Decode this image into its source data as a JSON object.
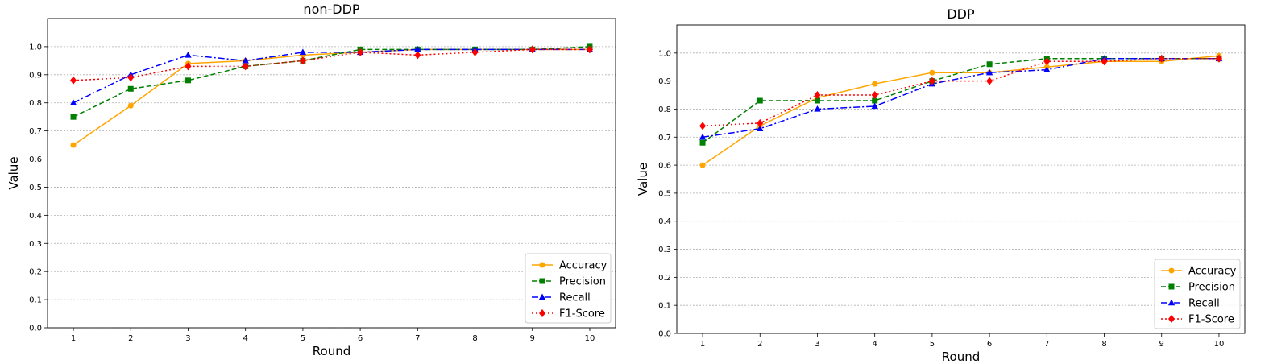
{
  "chart_data": [
    {
      "type": "line",
      "title": "non-DDP",
      "xlabel": "Round",
      "ylabel": "Value",
      "x": [
        1,
        2,
        3,
        4,
        5,
        6,
        7,
        8,
        9,
        10
      ],
      "xticks": [
        "1",
        "2",
        "3",
        "4",
        "5",
        "6",
        "7",
        "8",
        "9",
        "10"
      ],
      "yticks": [
        "0.0",
        "0.1",
        "0.2",
        "0.3",
        "0.4",
        "0.5",
        "0.6",
        "0.7",
        "0.8",
        "0.9",
        "1.0"
      ],
      "ylim": [
        0,
        1.1
      ],
      "grid": "y",
      "legend": "lower-right",
      "series": [
        {
          "name": "Accuracy",
          "color": "#ffa500",
          "linestyle": "solid",
          "marker": "circle",
          "values": [
            0.65,
            0.79,
            0.94,
            0.95,
            0.97,
            0.98,
            0.99,
            0.99,
            0.99,
            0.99
          ]
        },
        {
          "name": "Precision",
          "color": "#008000",
          "linestyle": "dashed",
          "marker": "square",
          "values": [
            0.75,
            0.85,
            0.88,
            0.93,
            0.95,
            0.99,
            0.99,
            0.99,
            0.99,
            1.0
          ]
        },
        {
          "name": "Recall",
          "color": "#0000ff",
          "linestyle": "dashdot",
          "marker": "triangle",
          "values": [
            0.8,
            0.9,
            0.97,
            0.95,
            0.98,
            0.98,
            0.99,
            0.99,
            0.99,
            0.99
          ]
        },
        {
          "name": "F1-Score",
          "color": "#ff0000",
          "linestyle": "dotted",
          "marker": "diamond",
          "values": [
            0.88,
            0.89,
            0.93,
            0.93,
            0.95,
            0.98,
            0.97,
            0.98,
            0.99,
            0.99
          ]
        }
      ]
    },
    {
      "type": "line",
      "title": "DDP",
      "xlabel": "Round",
      "ylabel": "Value",
      "x": [
        1,
        2,
        3,
        4,
        5,
        6,
        7,
        8,
        9,
        10
      ],
      "xticks": [
        "1",
        "2",
        "3",
        "4",
        "5",
        "6",
        "7",
        "8",
        "9",
        "10"
      ],
      "yticks": [
        "0.0",
        "0.1",
        "0.2",
        "0.3",
        "0.4",
        "0.5",
        "0.6",
        "0.7",
        "0.8",
        "0.9",
        "1.0"
      ],
      "ylim": [
        0,
        1.1
      ],
      "grid": "y",
      "legend": "lower-right",
      "series": [
        {
          "name": "Accuracy",
          "color": "#ffa500",
          "linestyle": "solid",
          "marker": "circle",
          "values": [
            0.6,
            0.74,
            0.84,
            0.89,
            0.93,
            0.93,
            0.95,
            0.97,
            0.97,
            0.99
          ]
        },
        {
          "name": "Precision",
          "color": "#008000",
          "linestyle": "dashed",
          "marker": "square",
          "values": [
            0.68,
            0.83,
            0.83,
            0.83,
            0.9,
            0.96,
            0.98,
            0.98,
            0.98,
            0.98
          ]
        },
        {
          "name": "Recall",
          "color": "#0000ff",
          "linestyle": "dashdot",
          "marker": "triangle",
          "values": [
            0.7,
            0.73,
            0.8,
            0.81,
            0.89,
            0.93,
            0.94,
            0.98,
            0.98,
            0.98
          ]
        },
        {
          "name": "F1-Score",
          "color": "#ff0000",
          "linestyle": "dotted",
          "marker": "diamond",
          "values": [
            0.74,
            0.75,
            0.85,
            0.85,
            0.9,
            0.9,
            0.97,
            0.97,
            0.98,
            0.98
          ]
        }
      ]
    }
  ]
}
